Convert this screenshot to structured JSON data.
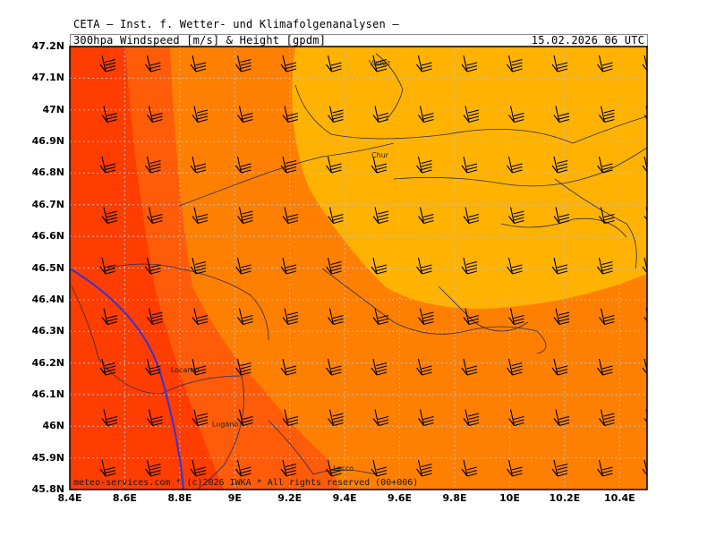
{
  "header": {
    "title": "CETA — Inst. f. Wetter- und Klimafolgenanalysen —",
    "subtitle": "300hpa_Windspeed_[m/s]_&_Height_[gpdm]",
    "datetime": "15.02.2026 06 UTC"
  },
  "footer": "meteo-services.com * (c)2026 IWKA * All rights reserved (00+006)",
  "map": {
    "lon_range": [
      8.4,
      10.5
    ],
    "lat_range": [
      45.8,
      47.2
    ],
    "lon_ticks": [
      "8.4E",
      "8.6E",
      "8.8E",
      "9E",
      "9.2E",
      "9.4E",
      "9.6E",
      "9.8E",
      "10E",
      "10.2E",
      "10.4E"
    ],
    "lat_ticks": [
      "47.2N",
      "47.1N",
      "47N",
      "46.9N",
      "46.8N",
      "46.7N",
      "46.6N",
      "46.5N",
      "46.4N",
      "46.3N",
      "46.2N",
      "46.1N",
      "46N",
      "45.9N",
      "45.8N"
    ],
    "grid": true,
    "colors": {
      "speed_band_1": "#ff3d00",
      "speed_band_2": "#ff5c0a",
      "speed_band_3": "#ff8000",
      "speed_band_4": "#ff9900",
      "speed_band_5": "#ffb300",
      "height_contour": "#3333dd",
      "borders": "#2a2a55"
    },
    "cities": [
      {
        "name": "Vaduz",
        "lon": 9.52,
        "lat": 47.14
      },
      {
        "name": "Chur",
        "lon": 9.53,
        "lat": 46.85
      },
      {
        "name": "Locarno",
        "lon": 8.8,
        "lat": 46.17
      },
      {
        "name": "Lugano",
        "lon": 8.95,
        "lat": 46.0
      },
      {
        "name": "Lecco",
        "lon": 9.39,
        "lat": 45.86
      }
    ]
  }
}
